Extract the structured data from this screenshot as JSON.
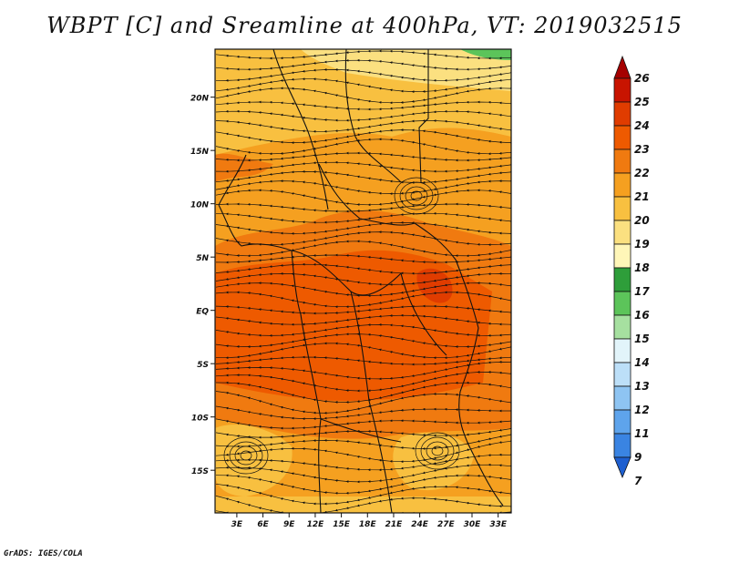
{
  "title": "WBPT [C] and Sreamline at 400hPa, VT: 2019032515",
  "footer": "GrADS: IGES/COLA",
  "map": {
    "lat_labels": [
      "20N",
      "15N",
      "10N",
      "5N",
      "EQ",
      "5S",
      "10S",
      "15S"
    ],
    "lon_labels": [
      "3E",
      "6E",
      "9E",
      "12E",
      "15E",
      "18E",
      "21E",
      "24E",
      "27E",
      "30E",
      "33E"
    ],
    "lat_values": [
      20,
      15,
      10,
      5,
      0,
      -5,
      -10,
      -15
    ],
    "lon_values": [
      3,
      6,
      9,
      12,
      15,
      18,
      21,
      24,
      27,
      30,
      33
    ],
    "lon_range": [
      0.5,
      34.5
    ],
    "lat_range": [
      -19,
      24.5
    ]
  },
  "colorbar": {
    "levels": [
      "26",
      "25",
      "24",
      "23",
      "22",
      "21",
      "20",
      "19",
      "18",
      "17",
      "16",
      "15",
      "14",
      "13",
      "12",
      "11",
      "9",
      "7"
    ],
    "colors": [
      "#a50000",
      "#c81400",
      "#e03c00",
      "#ee5a00",
      "#f07a10",
      "#f5a020",
      "#f8c040",
      "#fbe080",
      "#fff6b8",
      "#2e9e3a",
      "#5cc45a",
      "#a6e0a0",
      "#e2f4fa",
      "#bcdff8",
      "#8ec4f2",
      "#5ea4ec",
      "#3a84e2",
      "#1e5fd0"
    ],
    "top_arrow_color": "#a50000",
    "bottom_arrow_color": "#1e5fd0"
  }
}
